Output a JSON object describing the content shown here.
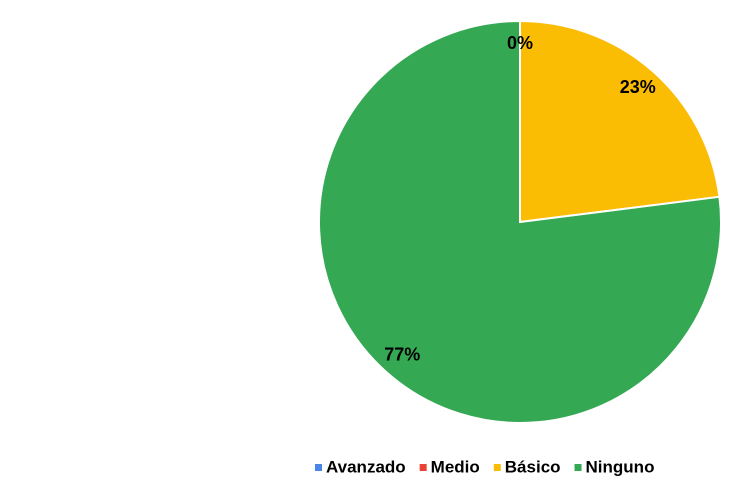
{
  "chart_data": {
    "type": "pie",
    "categories": [
      "Avanzado",
      "Medio",
      "Básico",
      "Ninguno"
    ],
    "values": [
      0,
      0,
      23,
      77
    ],
    "value_labels": [
      "0%",
      null,
      "23%",
      "77%"
    ],
    "colors": [
      "#4a86e8",
      "#ea4335",
      "#fbbc04",
      "#34a853"
    ],
    "legend": "bottom"
  }
}
